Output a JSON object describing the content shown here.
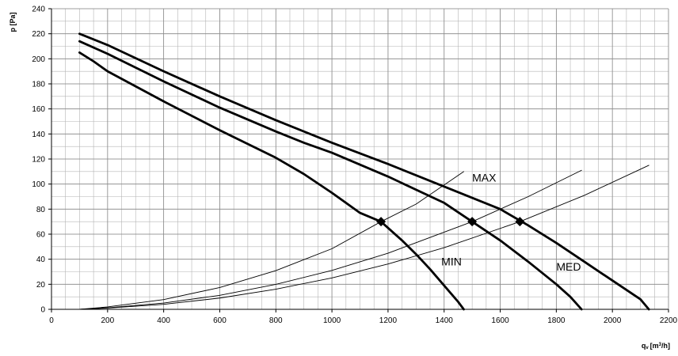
{
  "chart_data": {
    "type": "line",
    "title": "",
    "xlabel": "q",
    "xlabel_sub": "v",
    "xlabel_unit_pre": "[m",
    "xlabel_unit_sup": "3",
    "xlabel_unit_post": "/h]",
    "ylabel": "p [Pa]",
    "xlim": [
      0,
      2200
    ],
    "ylim": [
      0,
      240
    ],
    "x_ticks": [
      0,
      200,
      400,
      600,
      800,
      1000,
      1200,
      1400,
      1600,
      1800,
      2000,
      2200
    ],
    "y_ticks": [
      0,
      20,
      40,
      60,
      80,
      100,
      120,
      140,
      160,
      180,
      200,
      220,
      240
    ],
    "x_minor_step": 50,
    "y_minor_step": 10,
    "grid": true,
    "colors": {
      "grid": "#b4b4b4",
      "axis": "#000000",
      "curve": "#000000"
    },
    "series": [
      {
        "name": "MAX",
        "kind": "fan_curve",
        "x": [
          100,
          200,
          400,
          600,
          800,
          1000,
          1200,
          1400,
          1500,
          1600,
          1700,
          1800,
          1900,
          2000,
          2100,
          2130
        ],
        "y": [
          220,
          211,
          190,
          170,
          151,
          133,
          116,
          98,
          89,
          80,
          67,
          53,
          38,
          23,
          8,
          0
        ]
      },
      {
        "name": "MED",
        "kind": "fan_curve",
        "x": [
          100,
          200,
          400,
          600,
          800,
          900,
          1000,
          1200,
          1400,
          1500,
          1600,
          1700,
          1800,
          1850,
          1890
        ],
        "y": [
          214,
          204,
          182,
          161,
          142,
          133,
          125,
          106,
          85,
          70,
          55,
          38,
          20,
          10,
          0
        ]
      },
      {
        "name": "MIN",
        "kind": "fan_curve",
        "x": [
          100,
          150,
          200,
          300,
          400,
          600,
          800,
          900,
          1000,
          1100,
          1175,
          1250,
          1300,
          1350,
          1400,
          1450,
          1470
        ],
        "y": [
          205,
          198,
          190,
          178,
          166,
          143,
          121,
          108,
          93,
          77,
          70,
          55,
          44,
          32,
          19,
          6,
          0
        ]
      },
      {
        "name": "",
        "kind": "system_curve",
        "x": [
          100,
          200,
          400,
          600,
          800,
          1000,
          1175,
          1300,
          1470
        ],
        "y": [
          0,
          1.9,
          7.8,
          17.4,
          30.9,
          48.4,
          70,
          84,
          110
        ]
      },
      {
        "name": "",
        "kind": "system_curve",
        "x": [
          100,
          200,
          400,
          600,
          800,
          1000,
          1200,
          1500,
          1700,
          1890
        ],
        "y": [
          0,
          1.2,
          5.0,
          11.2,
          19.9,
          31.1,
          44.8,
          70,
          90,
          111
        ]
      },
      {
        "name": "",
        "kind": "system_curve",
        "x": [
          100,
          200,
          400,
          600,
          800,
          1000,
          1200,
          1400,
          1670,
          1900,
          2130
        ],
        "y": [
          0,
          1.0,
          4.0,
          9.0,
          16.1,
          25.1,
          36.2,
          49.2,
          70,
          91,
          115
        ]
      }
    ],
    "operating_points": [
      {
        "x": 1175,
        "y": 70
      },
      {
        "x": 1500,
        "y": 70
      },
      {
        "x": 1670,
        "y": 70
      }
    ],
    "annotations": [
      {
        "text": "MAX",
        "x": 1500,
        "y": 102
      },
      {
        "text": "MED",
        "x": 1800,
        "y": 31
      },
      {
        "text": "MIN",
        "x": 1390,
        "y": 35
      }
    ]
  }
}
